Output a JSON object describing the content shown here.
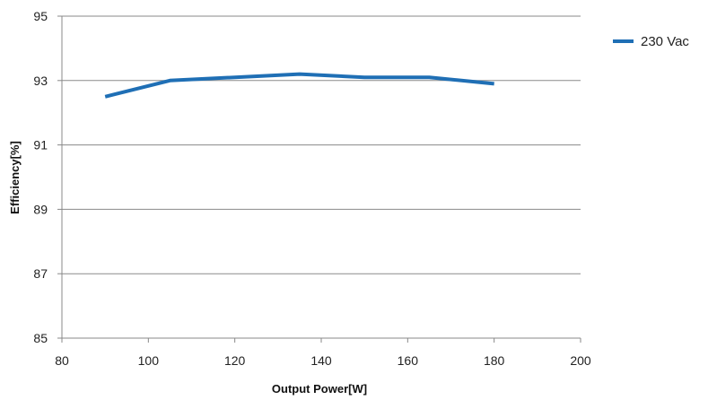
{
  "chart_data": {
    "type": "line",
    "title": "",
    "xlabel": "Output Power[W]",
    "ylabel": "Efficiency[%]",
    "xlim": [
      80,
      200
    ],
    "ylim": [
      85,
      95
    ],
    "x_ticks": [
      "80",
      "100",
      "120",
      "140",
      "160",
      "180",
      "200"
    ],
    "y_ticks": [
      "95",
      "93",
      "91",
      "89",
      "87",
      "85"
    ],
    "grid": "horizontal",
    "legend": "right",
    "series": [
      {
        "name": "230 Vac",
        "color": "#1f6fb5",
        "x": [
          90,
          105,
          120,
          135,
          150,
          165,
          180
        ],
        "y": [
          92.5,
          93.0,
          93.1,
          93.2,
          93.1,
          93.1,
          92.9
        ]
      }
    ]
  }
}
